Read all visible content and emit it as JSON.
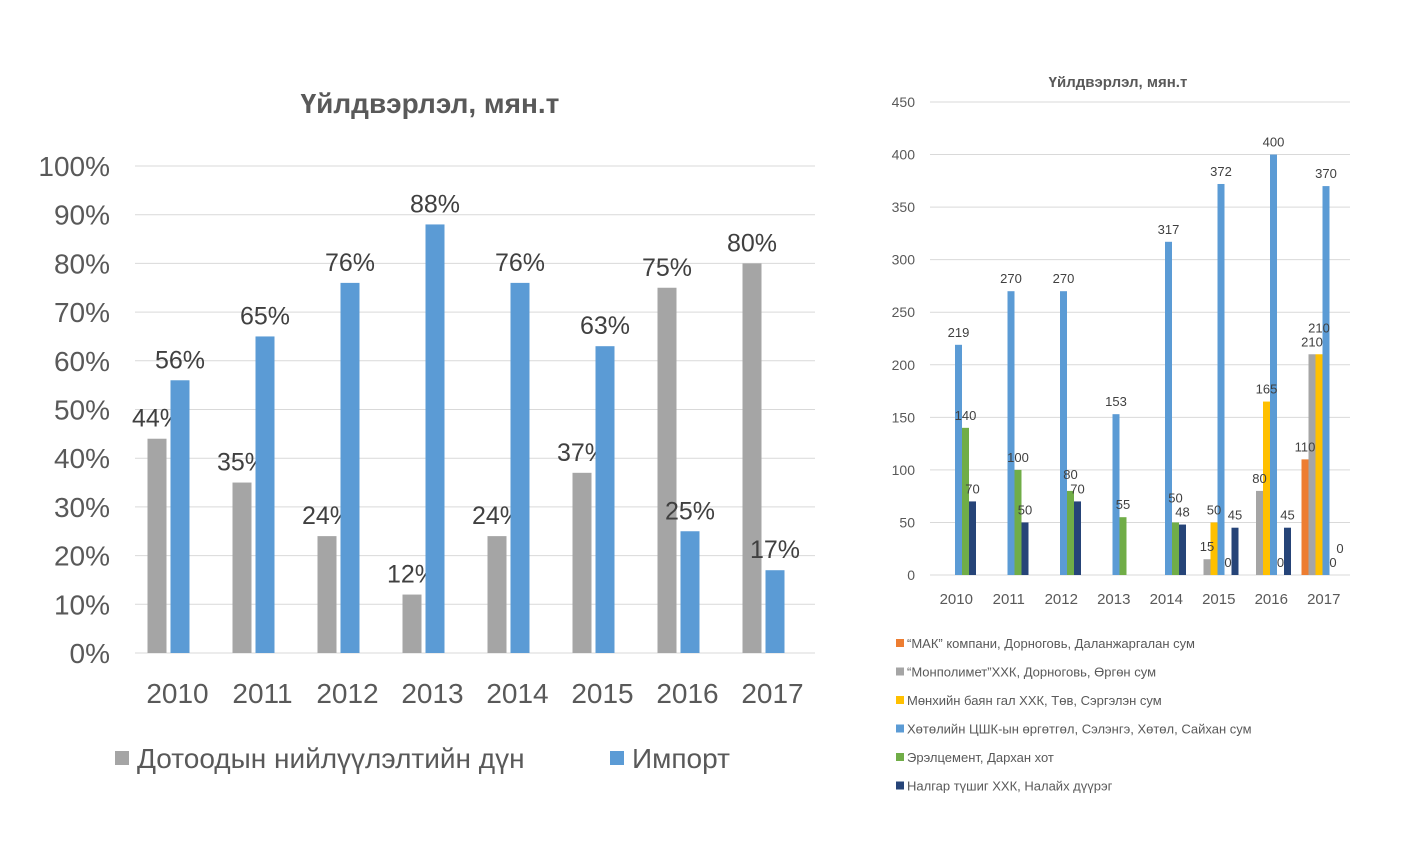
{
  "chart_data": [
    {
      "type": "bar",
      "title": "Үйлдвэрлэл,  мян.т",
      "categories": [
        "2010",
        "2011",
        "2012",
        "2013",
        "2014",
        "2015",
        "2016",
        "2017"
      ],
      "ylim": [
        0,
        100
      ],
      "yticks": [
        "0%",
        "10%",
        "20%",
        "30%",
        "40%",
        "50%",
        "60%",
        "70%",
        "80%",
        "90%",
        "100%"
      ],
      "grid": true,
      "legend": "bottom",
      "series": [
        {
          "name": "Дотоодын нийлүүлэлтийн дүн",
          "color": "#a5a5a5",
          "values": [
            44,
            35,
            24,
            12,
            24,
            37,
            75,
            80
          ],
          "labels": [
            "44%",
            "35%",
            "24%",
            "12%",
            "24%",
            "37%",
            "75%",
            "80%"
          ]
        },
        {
          "name": "Импорт",
          "color": "#5b9bd5",
          "values": [
            56,
            65,
            76,
            88,
            76,
            63,
            25,
            17
          ],
          "labels": [
            "56%",
            "65%",
            "76%",
            "88%",
            "76%",
            "63%",
            "25%",
            "17%"
          ]
        }
      ]
    },
    {
      "type": "bar",
      "title": "Үйлдвэрлэл,  мян.т",
      "categories": [
        "2010",
        "2011",
        "2012",
        "2013",
        "2014",
        "2015",
        "2016",
        "2017"
      ],
      "ylim": [
        0,
        450
      ],
      "yticks": [
        "0",
        "50",
        "100",
        "150",
        "200",
        "250",
        "300",
        "350",
        "400",
        "450"
      ],
      "grid": true,
      "legend": "bottom",
      "series": [
        {
          "name": "“МАК” компани, Дорноговь, Даланжаргалан сум",
          "color": "#ed7d31",
          "values": [
            null,
            null,
            null,
            null,
            null,
            null,
            null,
            110
          ]
        },
        {
          "name": "“Монполимет”ХХК, Дорноговь, Өргөн сум",
          "color": "#a5a5a5",
          "values": [
            null,
            null,
            null,
            null,
            null,
            15,
            80,
            210
          ]
        },
        {
          "name": "Мөнхийн баян гал  ХХК, Төв, Сэргэлэн сум",
          "color": "#ffc000",
          "values": [
            null,
            null,
            null,
            null,
            null,
            50,
            165,
            210
          ]
        },
        {
          "name": "Хөтөлийн ЦШК-ын өргөтгөл, Сэлэнгэ, Хөтөл,  Сайхан сум",
          "color": "#5b9bd5",
          "values": [
            219,
            270,
            270,
            153,
            317,
            372,
            400,
            370
          ]
        },
        {
          "name": "Эрэлцемент, Дархан хот",
          "color": "#70ad47",
          "values": [
            140,
            100,
            80,
            55,
            50,
            0,
            0,
            0
          ]
        },
        {
          "name": "Налгар түшиг ХХК, Налайх дүүрэг",
          "color": "#264478",
          "values": [
            70,
            50,
            70,
            null,
            48,
            45,
            45,
            0
          ]
        }
      ]
    }
  ]
}
